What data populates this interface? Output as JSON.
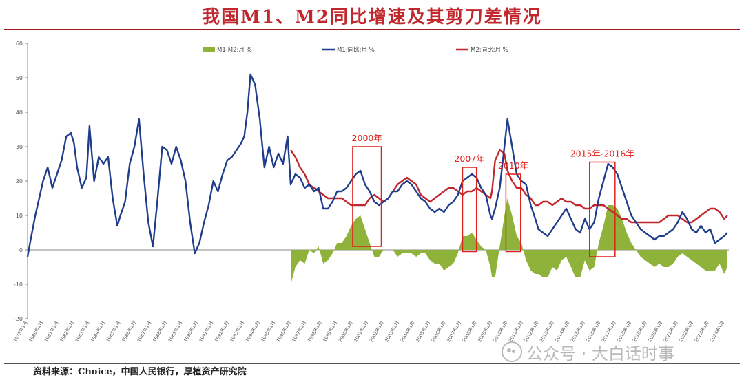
{
  "page": {
    "title": "我国M1、M2同比增速及其剪刀差情况"
  },
  "footer": {
    "source": "资料来源：Choice，中国人民银行，厚植资产研究院",
    "watermark": "公众号 · 大白话时事"
  },
  "colors": {
    "m1": "#1f3d8a",
    "m2": "#c0272d",
    "gap": "#8fb33a",
    "annotation": "#e0201b"
  },
  "chart_data": {
    "type": "line",
    "title": "",
    "ylim": [
      -20,
      60
    ],
    "yticks": [
      -20,
      -10,
      0,
      10,
      20,
      30,
      40,
      50,
      60
    ],
    "xlim": [
      1979.0,
      2024.3
    ],
    "legend": {
      "position": "top",
      "entries": [
        "M1-M2:月 %",
        "M1:同比:月 %",
        "M2:同比:月 %"
      ]
    },
    "x_tick_labels": [
      "1979年1月",
      "1980年1月",
      "1981年1月",
      "1982年1月",
      "1983年1月",
      "1984年1月",
      "1985年1月",
      "1986年1月",
      "1987年1月",
      "1988年1月",
      "1989年1月",
      "1990年1月",
      "1991年1月",
      "1992年1月",
      "1993年1月",
      "1994年1月",
      "1995年1月",
      "1996年1月",
      "1997年1月",
      "1998年1月",
      "1999年1月",
      "2000年1月",
      "2001年1月",
      "2002年1月",
      "2003年1月",
      "2004年1月",
      "2005年1月",
      "2006年1月",
      "2007年1月",
      "2008年1月",
      "2009年1月",
      "2010年1月",
      "2011年1月",
      "2012年1月",
      "2013年1月",
      "2014年1月",
      "2015年1月",
      "2016年1月",
      "2017年1月",
      "2018年1月",
      "2019年1月",
      "2020年1月",
      "2021年1月",
      "2022年1月",
      "2023年1月",
      "2024年1月"
    ],
    "series": [
      {
        "name": "M1:同比:月 %",
        "kind": "line",
        "x": [
          1979.0,
          1979.2,
          1979.5,
          1979.8,
          1980.0,
          1980.3,
          1980.6,
          1980.9,
          1981.2,
          1981.5,
          1981.8,
          1982.0,
          1982.2,
          1982.5,
          1982.8,
          1983.0,
          1983.3,
          1983.6,
          1983.9,
          1984.2,
          1984.5,
          1984.8,
          1985.0,
          1985.3,
          1985.6,
          1985.9,
          1986.2,
          1986.5,
          1986.8,
          1987.1,
          1987.4,
          1987.7,
          1988.0,
          1988.3,
          1988.6,
          1988.9,
          1989.2,
          1989.5,
          1989.8,
          1990.1,
          1990.4,
          1990.7,
          1991.0,
          1991.3,
          1991.6,
          1991.9,
          1992.2,
          1992.5,
          1992.8,
          1993.0,
          1993.2,
          1993.4,
          1993.7,
          1994.0,
          1994.3,
          1994.6,
          1994.9,
          1995.2,
          1995.5,
          1995.8,
          1996.0,
          1996.3,
          1996.6,
          1996.9,
          1997.2,
          1997.5,
          1997.8,
          1998.1,
          1998.4,
          1998.7,
          1999.0,
          1999.3,
          1999.6,
          1999.9,
          2000.2,
          2000.5,
          2000.8,
          2001.1,
          2001.4,
          2001.7,
          2002.0,
          2002.3,
          2002.6,
          2002.9,
          2003.2,
          2003.5,
          2003.8,
          2004.1,
          2004.4,
          2004.7,
          2005.0,
          2005.3,
          2005.6,
          2005.9,
          2006.2,
          2006.5,
          2006.8,
          2007.1,
          2007.4,
          2007.7,
          2008.0,
          2008.3,
          2008.6,
          2008.9,
          2009.0,
          2009.2,
          2009.5,
          2009.8,
          2010.0,
          2010.3,
          2010.6,
          2010.9,
          2011.2,
          2011.5,
          2011.8,
          2012.0,
          2012.3,
          2012.6,
          2012.9,
          2013.2,
          2013.5,
          2013.8,
          2014.1,
          2014.4,
          2014.7,
          2015.0,
          2015.3,
          2015.6,
          2015.9,
          2016.2,
          2016.5,
          2016.8,
          2017.1,
          2017.4,
          2017.7,
          2018.0,
          2018.3,
          2018.6,
          2018.9,
          2019.2,
          2019.5,
          2019.8,
          2020.1,
          2020.4,
          2020.7,
          2021.0,
          2021.3,
          2021.6,
          2021.9,
          2022.2,
          2022.5,
          2022.8,
          2023.1,
          2023.4,
          2023.7,
          2024.0,
          2024.2
        ],
        "y": [
          -2,
          3,
          10,
          16,
          20,
          24,
          18,
          22,
          26,
          33,
          34,
          31,
          24,
          18,
          21,
          36,
          20,
          27,
          25,
          27,
          15,
          7,
          10,
          14,
          25,
          30,
          38,
          22,
          8,
          1,
          15,
          30,
          29,
          25,
          30,
          26,
          20,
          8,
          -1,
          2,
          8,
          13,
          20,
          17,
          22,
          26,
          27,
          29,
          31,
          33,
          40,
          51,
          48,
          38,
          24,
          30,
          24,
          28,
          25,
          33,
          19,
          22,
          21,
          18,
          19,
          17,
          18,
          12,
          12,
          14,
          17,
          17,
          18,
          20,
          22,
          23,
          19,
          17,
          14,
          13,
          14,
          15,
          17,
          17,
          19,
          20,
          19,
          17,
          15,
          14,
          12,
          11,
          12,
          11,
          13,
          14,
          16,
          20,
          21,
          22,
          21,
          18,
          16,
          10,
          9,
          12,
          18,
          30,
          38,
          30,
          22,
          20,
          19,
          13,
          9,
          6,
          5,
          4,
          6,
          8,
          10,
          12,
          9,
          6,
          5,
          9,
          6,
          8,
          15,
          20,
          25,
          24,
          22,
          18,
          14,
          10,
          8,
          6,
          5,
          4,
          3,
          4,
          4,
          5,
          6,
          8,
          11,
          9,
          6,
          5,
          7,
          5,
          6,
          2,
          3,
          4,
          5
        ]
      },
      {
        "name": "M2:同比:月 %",
        "kind": "line",
        "x": [
          1996.0,
          1996.3,
          1996.6,
          1996.9,
          1997.2,
          1997.5,
          1997.8,
          1998.1,
          1998.4,
          1998.7,
          1999.0,
          1999.3,
          1999.6,
          1999.9,
          2000.2,
          2000.5,
          2000.8,
          2001.1,
          2001.4,
          2001.7,
          2002.0,
          2002.3,
          2002.6,
          2002.9,
          2003.2,
          2003.5,
          2003.8,
          2004.1,
          2004.4,
          2004.7,
          2005.0,
          2005.3,
          2005.6,
          2005.9,
          2006.2,
          2006.5,
          2006.8,
          2007.1,
          2007.4,
          2007.7,
          2008.0,
          2008.3,
          2008.6,
          2008.9,
          2009.0,
          2009.2,
          2009.5,
          2009.8,
          2010.0,
          2010.3,
          2010.6,
          2010.9,
          2011.2,
          2011.5,
          2011.8,
          2012.0,
          2012.3,
          2012.6,
          2012.9,
          2013.2,
          2013.5,
          2013.8,
          2014.1,
          2014.4,
          2014.7,
          2015.0,
          2015.3,
          2015.6,
          2015.9,
          2016.2,
          2016.5,
          2016.8,
          2017.1,
          2017.4,
          2017.7,
          2018.0,
          2018.3,
          2018.6,
          2018.9,
          2019.2,
          2019.5,
          2019.8,
          2020.1,
          2020.4,
          2020.7,
          2021.0,
          2021.3,
          2021.6,
          2021.9,
          2022.2,
          2022.5,
          2022.8,
          2023.1,
          2023.4,
          2023.7,
          2024.0,
          2024.2
        ],
        "y": [
          29,
          27,
          24,
          22,
          19,
          18,
          17,
          16,
          15,
          15,
          15,
          15,
          14,
          13,
          13,
          13,
          13,
          15,
          16,
          15,
          14,
          15,
          17,
          19,
          20,
          21,
          20,
          19,
          16,
          15,
          14,
          15,
          16,
          17,
          18,
          18,
          17,
          16,
          17,
          17,
          18,
          17,
          16,
          15,
          17,
          26,
          29,
          28,
          23,
          20,
          18,
          18,
          16,
          15,
          13,
          13,
          14,
          14,
          13,
          14,
          15,
          14,
          14,
          13,
          13,
          12,
          12,
          13,
          13,
          13,
          12,
          11,
          10,
          9,
          9,
          8,
          8,
          8,
          8,
          8,
          8,
          8,
          9,
          10,
          10,
          10,
          9,
          8,
          8,
          9,
          10,
          11,
          12,
          12,
          11,
          9,
          10
        ]
      },
      {
        "name": "M1-M2:月 %",
        "kind": "area",
        "x": [
          1996.0,
          1996.3,
          1996.6,
          1996.9,
          1997.2,
          1997.5,
          1997.8,
          1998.1,
          1998.4,
          1998.7,
          1999.0,
          1999.3,
          1999.6,
          1999.9,
          2000.2,
          2000.5,
          2000.8,
          2001.1,
          2001.4,
          2001.7,
          2002.0,
          2002.3,
          2002.6,
          2002.9,
          2003.2,
          2003.5,
          2003.8,
          2004.1,
          2004.4,
          2004.7,
          2005.0,
          2005.3,
          2005.6,
          2005.9,
          2006.2,
          2006.5,
          2006.8,
          2007.1,
          2007.4,
          2007.7,
          2008.0,
          2008.3,
          2008.6,
          2008.9,
          2009.0,
          2009.2,
          2009.5,
          2009.8,
          2010.0,
          2010.3,
          2010.6,
          2010.9,
          2011.2,
          2011.5,
          2011.8,
          2012.0,
          2012.3,
          2012.6,
          2012.9,
          2013.2,
          2013.5,
          2013.8,
          2014.1,
          2014.4,
          2014.7,
          2015.0,
          2015.3,
          2015.6,
          2015.9,
          2016.2,
          2016.5,
          2016.8,
          2017.1,
          2017.4,
          2017.7,
          2018.0,
          2018.3,
          2018.6,
          2018.9,
          2019.2,
          2019.5,
          2019.8,
          2020.1,
          2020.4,
          2020.7,
          2021.0,
          2021.3,
          2021.6,
          2021.9,
          2022.2,
          2022.5,
          2022.8,
          2023.1,
          2023.4,
          2023.7,
          2024.0,
          2024.2
        ],
        "y": [
          -10,
          -5,
          -3,
          -4,
          0,
          -1,
          1,
          -4,
          -3,
          -1,
          2,
          2,
          4,
          7,
          9,
          10,
          6,
          2,
          -2,
          -2,
          0,
          0,
          0,
          -2,
          -1,
          -1,
          -1,
          -2,
          -1,
          -1,
          -3,
          -4,
          -4,
          -6,
          -5,
          -4,
          -1,
          4,
          4,
          5,
          3,
          1,
          0,
          -5,
          -8,
          -8,
          1,
          10,
          15,
          10,
          4,
          2,
          -3,
          -6,
          -7,
          -7,
          -8,
          -8,
          -5,
          -6,
          -3,
          -2,
          -5,
          -8,
          -8,
          -3,
          -6,
          -5,
          2,
          7,
          13,
          13,
          12,
          9,
          5,
          2,
          0,
          -2,
          -3,
          -4,
          -5,
          -4,
          -5,
          -5,
          -4,
          -2,
          -1,
          -2,
          -3,
          -4,
          -5,
          -6,
          -6,
          -6,
          -4,
          -7,
          -5
        ]
      }
    ],
    "annotations": [
      {
        "label": "2000年",
        "x0": 2000.0,
        "x1": 2001.85,
        "y0": 1,
        "y1": 30
      },
      {
        "label": "2007年",
        "x0": 2007.1,
        "x1": 2008.0,
        "y0": -0.5,
        "y1": 24
      },
      {
        "label": "2010年",
        "x0": 2009.9,
        "x1": 2010.85,
        "y0": -0.5,
        "y1": 22
      },
      {
        "label": "2015年-2016年",
        "x0": 2015.3,
        "x1": 2016.95,
        "y0": -2,
        "y1": 25.5
      }
    ]
  }
}
